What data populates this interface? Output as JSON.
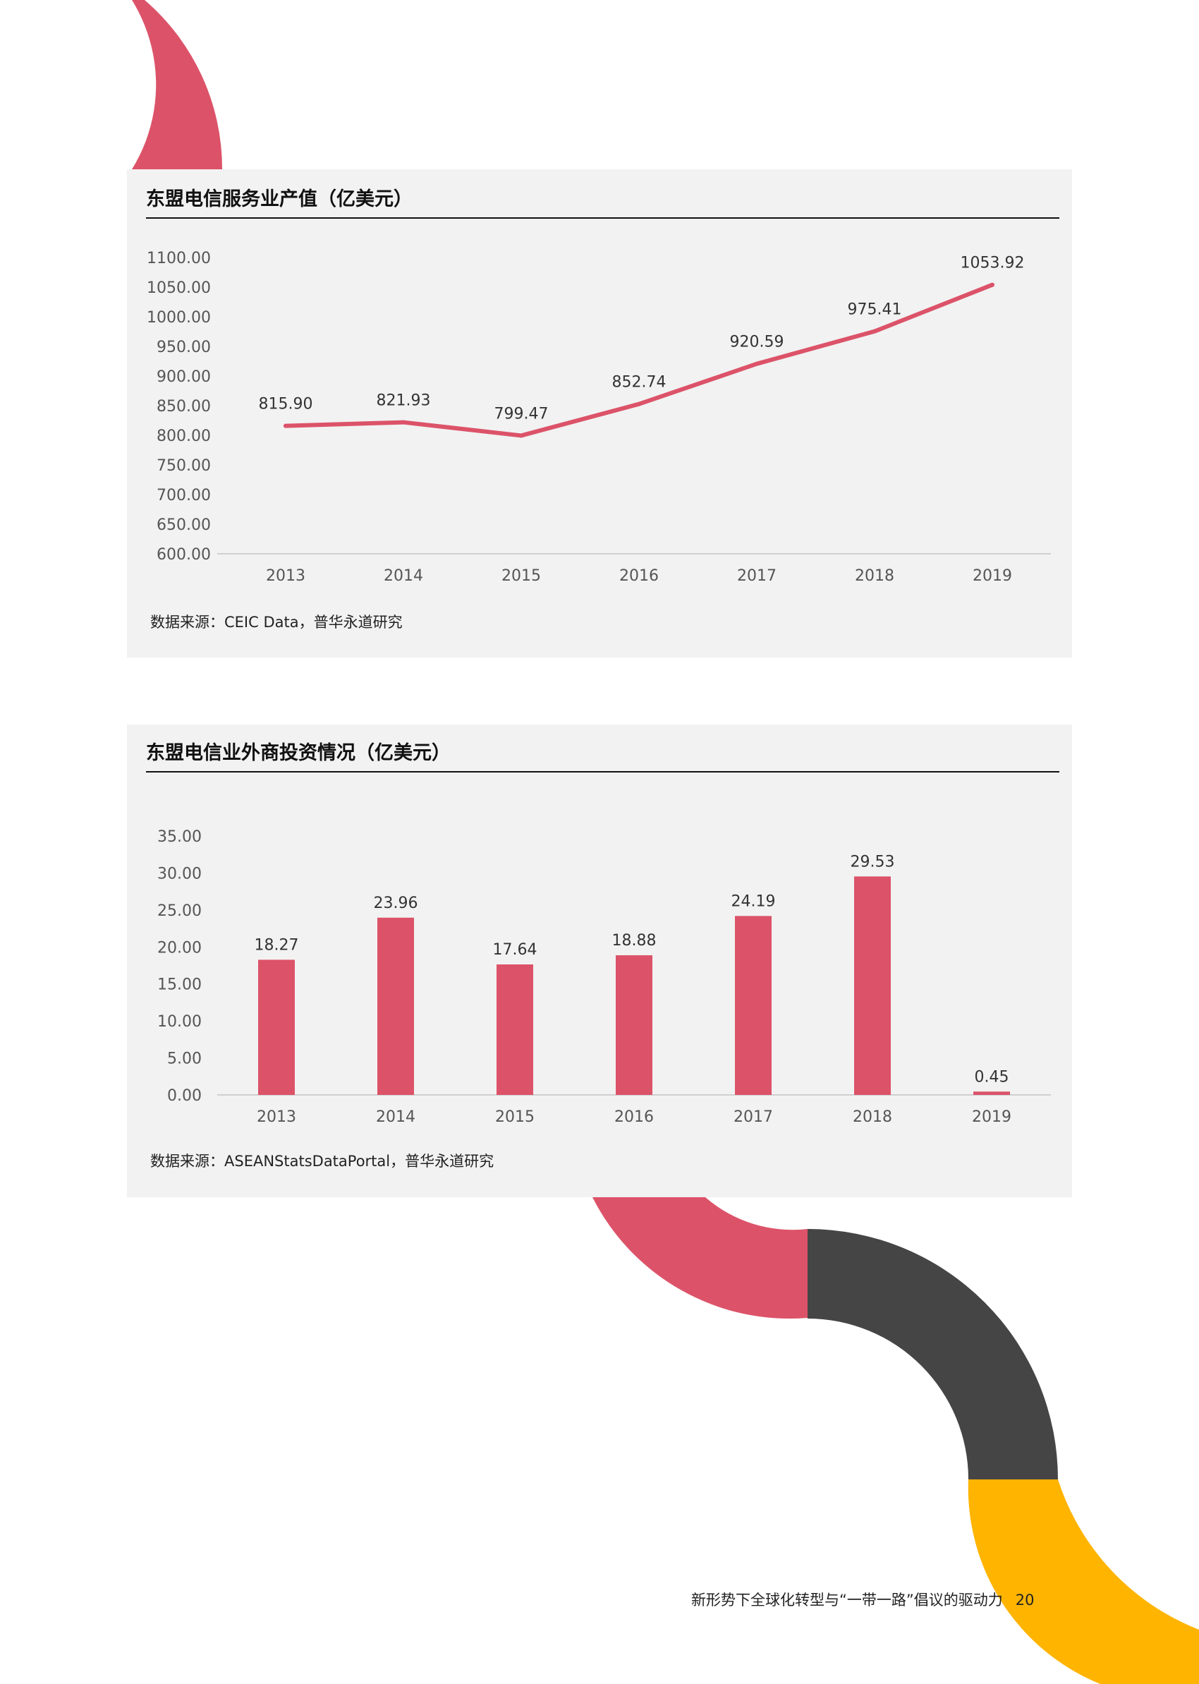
{
  "colors": {
    "accent": "#dc5369",
    "dark": "#454545",
    "yellow": "#ffb400",
    "panel": "#f2f2f2"
  },
  "chart_data": [
    {
      "type": "line",
      "title": "东盟电信服务业产值（亿美元）",
      "x": [
        "2013",
        "2014",
        "2015",
        "2016",
        "2017",
        "2018",
        "2019"
      ],
      "series": [
        {
          "values": [
            815.9,
            821.93,
            799.47,
            852.74,
            920.59,
            975.41,
            1053.92
          ]
        }
      ],
      "value_labels": [
        "815.90",
        "821.93",
        "799.47",
        "852.74",
        "920.59",
        "975.41",
        "1053.92"
      ],
      "yticks": [
        "600.00",
        "650.00",
        "700.00",
        "750.00",
        "800.00",
        "850.00",
        "900.00",
        "950.00",
        "1000.00",
        "1050.00",
        "1100.00"
      ],
      "ylim": [
        600,
        1100
      ],
      "grid": false,
      "source": "数据来源：CEIC Data，普华永道研究"
    },
    {
      "type": "bar",
      "title": "东盟电信业外商投资情况（亿美元）",
      "categories": [
        "2013",
        "2014",
        "2015",
        "2016",
        "2017",
        "2018",
        "2019"
      ],
      "values": [
        18.27,
        23.96,
        17.64,
        18.88,
        24.19,
        29.53,
        0.45
      ],
      "value_labels": [
        "18.27",
        "23.96",
        "17.64",
        "18.88",
        "24.19",
        "29.53",
        "0.45"
      ],
      "yticks": [
        "0.00",
        "5.00",
        "10.00",
        "15.00",
        "20.00",
        "25.00",
        "30.00",
        "35.00"
      ],
      "ylim": [
        0,
        35
      ],
      "grid": false,
      "source": "数据来源：ASEANStatsDataPortal，普华永道研究"
    }
  ],
  "footer": {
    "text": "新形势下全球化转型与“一带一路”倡议的驱动力",
    "page": "20"
  }
}
